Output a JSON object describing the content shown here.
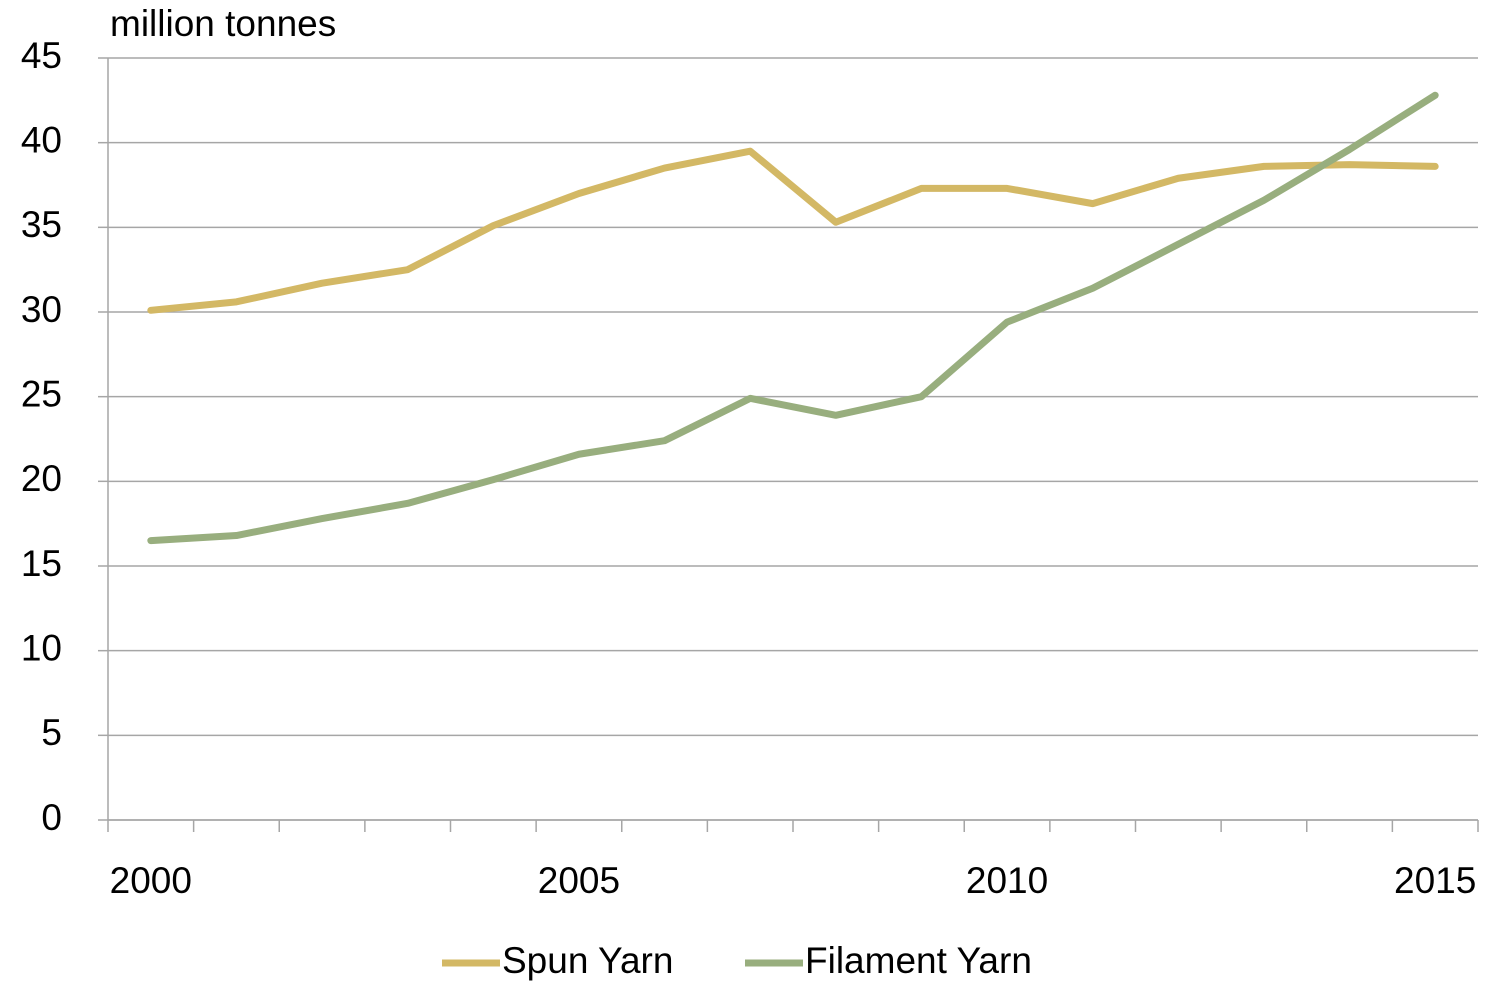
{
  "chart_data": {
    "type": "line",
    "y_axis_label": "million tonnes",
    "categories": [
      "2000",
      null,
      null,
      null,
      null,
      "2005",
      null,
      null,
      null,
      null,
      "2010",
      null,
      null,
      null,
      null,
      "2015"
    ],
    "series": [
      {
        "name": "Spun Yarn",
        "color": "#d3b865",
        "values": [
          30.1,
          30.6,
          31.7,
          32.5,
          35.1,
          37.0,
          38.5,
          39.5,
          35.3,
          37.3,
          37.3,
          36.4,
          37.9,
          38.6,
          38.7,
          38.6
        ]
      },
      {
        "name": "Filament Yarn",
        "color": "#98ae7e",
        "values": [
          16.5,
          16.8,
          17.8,
          18.7,
          20.1,
          21.6,
          22.4,
          24.9,
          23.9,
          25.0,
          29.4,
          31.4,
          34.0,
          36.6,
          39.6,
          42.8
        ]
      }
    ],
    "ylim": [
      0,
      45
    ],
    "yticks": [
      0,
      5,
      10,
      15,
      20,
      25,
      30,
      35,
      40,
      45
    ],
    "grid": true,
    "legend": "bottom"
  }
}
